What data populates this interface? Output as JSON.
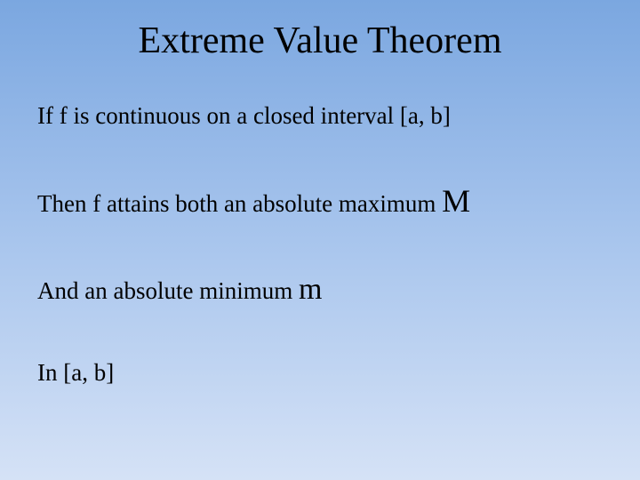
{
  "slide": {
    "title": "Extreme Value Theorem",
    "lines": {
      "l1": "If f is continuous on a closed interval [a, b]",
      "l2_pre": "Then f attains both an absolute maximum ",
      "l2_M": "M",
      "l3_pre": "And an absolute minimum ",
      "l3_m": "m",
      "l4": "In [a, b]"
    },
    "style": {
      "bg_gradient_top": "#7ba7e0",
      "bg_gradient_mid": "#a8c5ed",
      "bg_gradient_bottom": "#d5e2f6",
      "text_color": "#000000",
      "title_fontsize": 42,
      "body_fontsize": 27,
      "emphasis_fontsize": 36,
      "font_family": "Palatino / serif"
    }
  }
}
